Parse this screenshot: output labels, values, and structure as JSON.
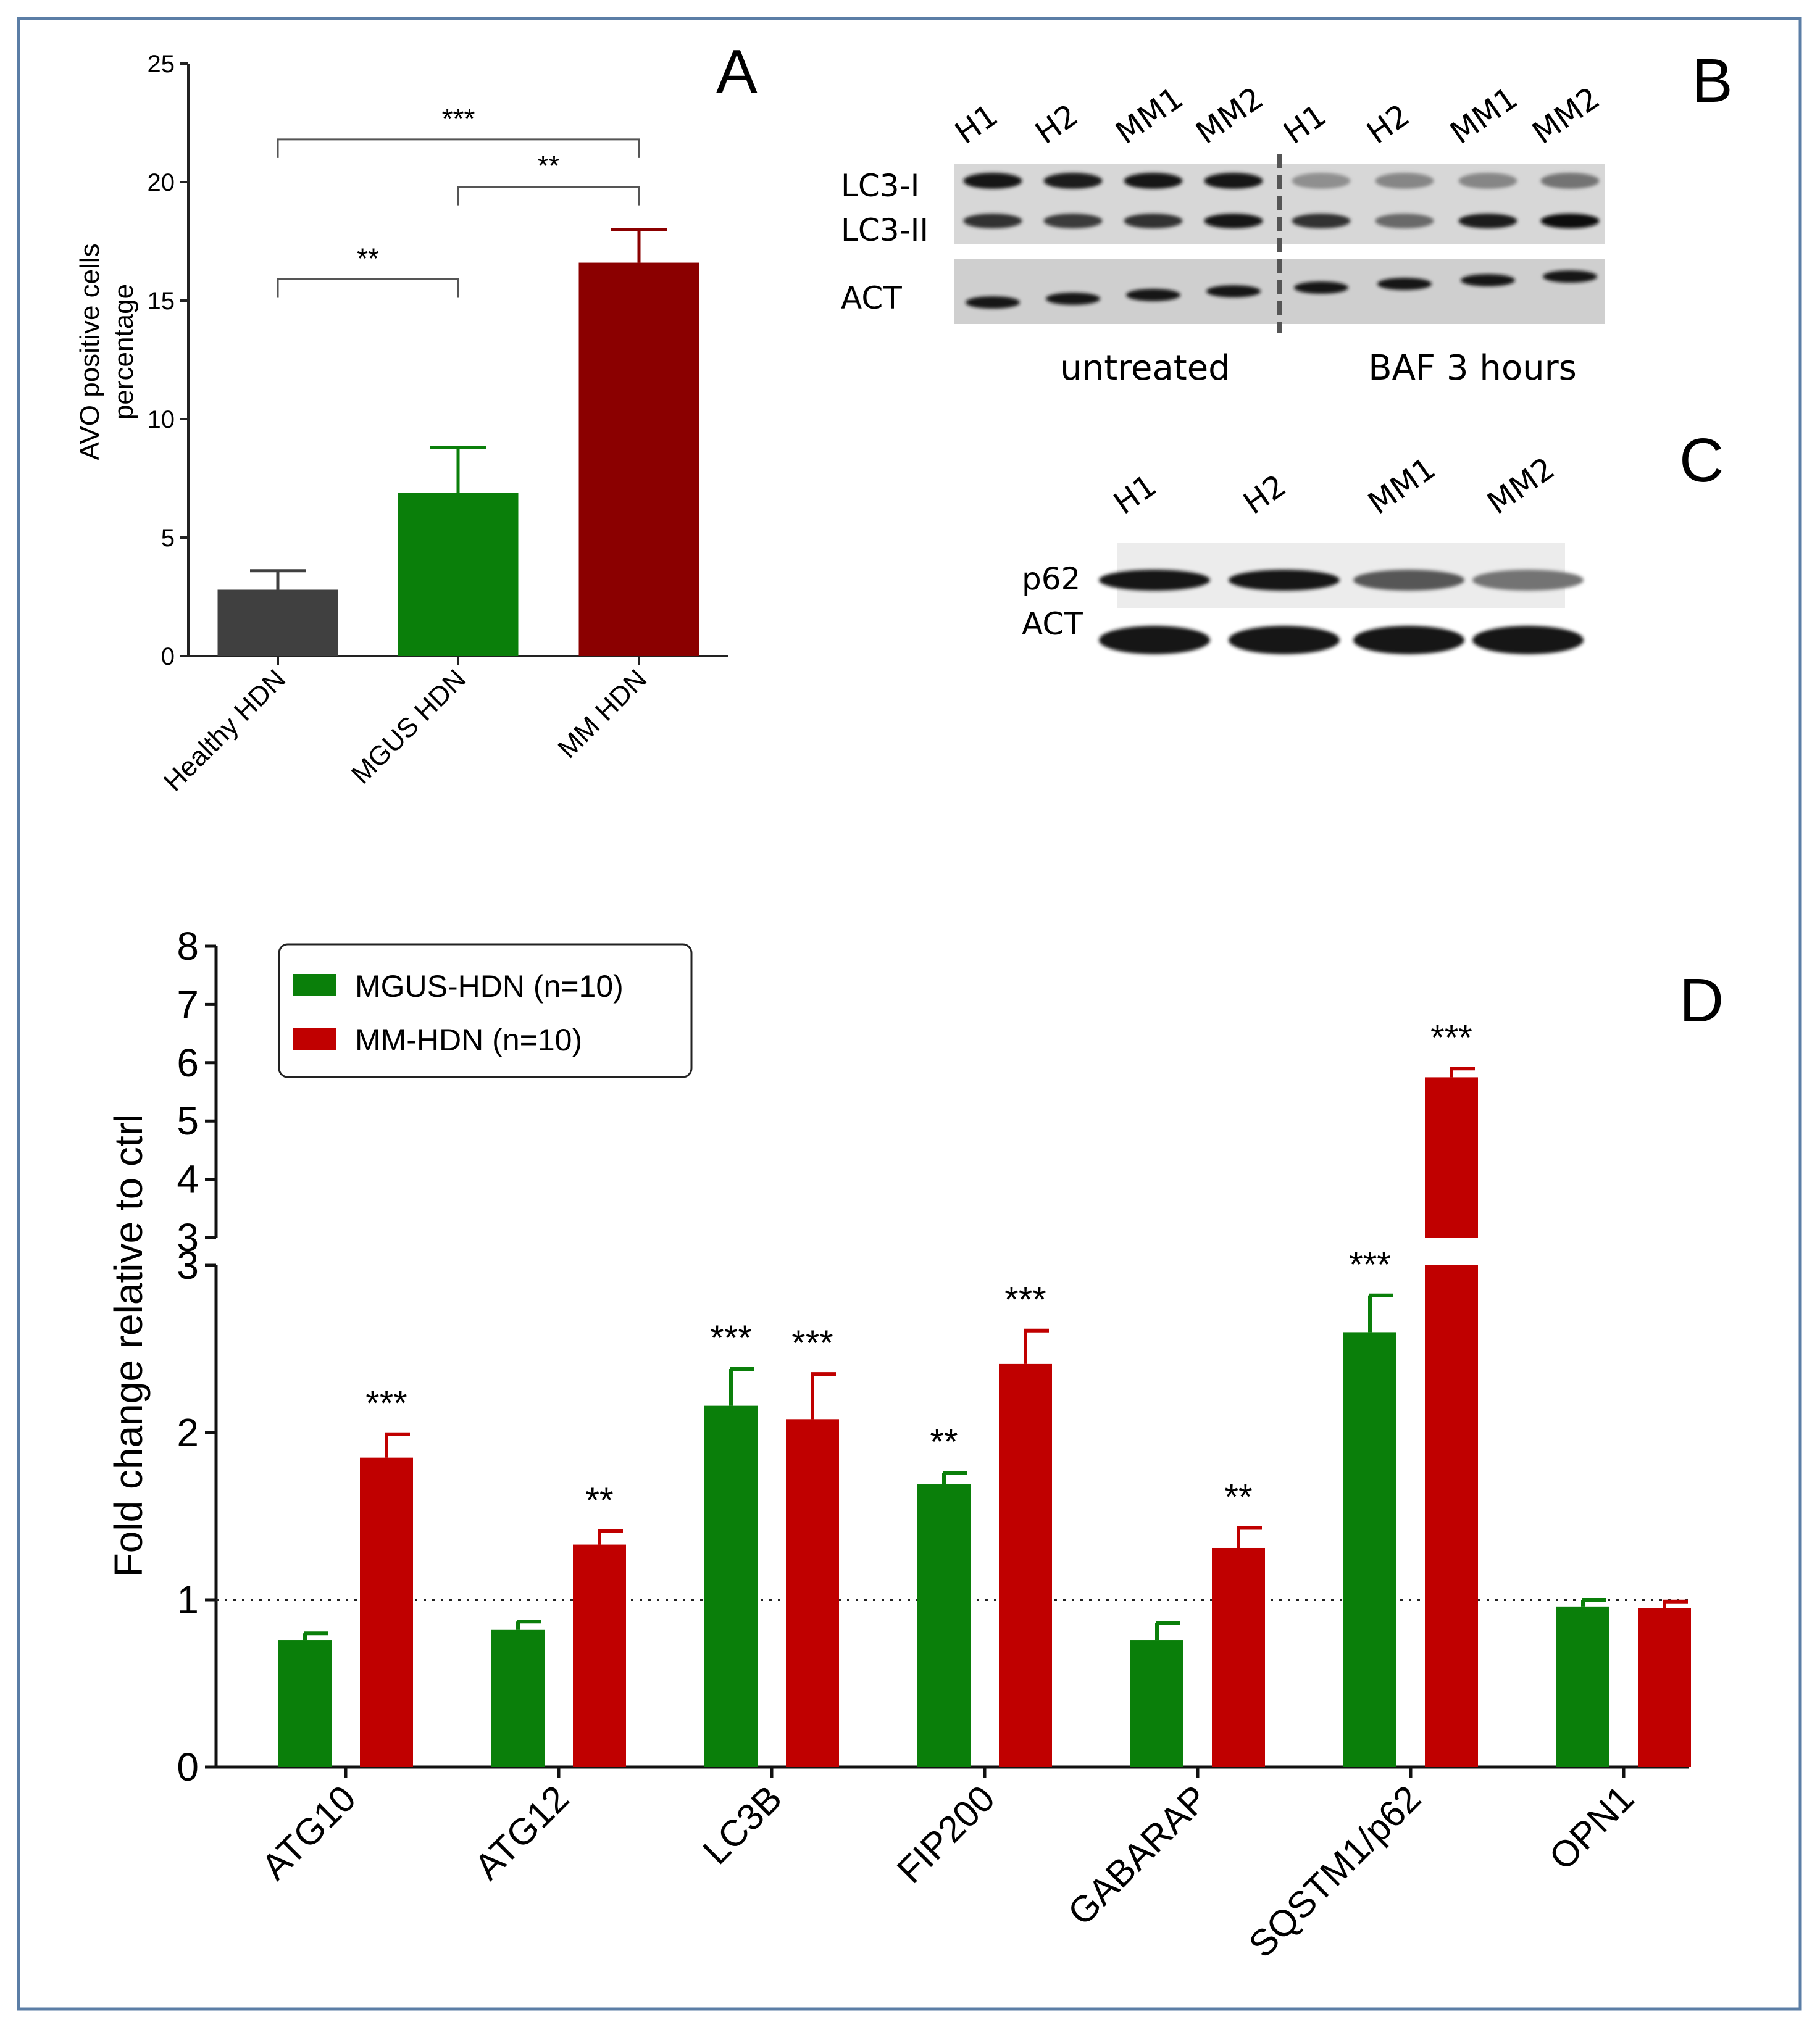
{
  "panel_labels": {
    "a": "A",
    "b": "B",
    "c": "C",
    "d": "D"
  },
  "colors": {
    "frame": "#5b7ea6",
    "healthy": "#404040",
    "mgus": "#0a7f0a",
    "mm_dark": "#8b0000",
    "mm": "#c00000"
  },
  "chart_data": [
    {
      "type": "bar",
      "panel": "A",
      "ylabel_lines": [
        "AVO positive cells",
        "percentage"
      ],
      "ylim": [
        0,
        25
      ],
      "yticks": [
        0,
        5,
        10,
        15,
        20,
        25
      ],
      "categories": [
        "Healthy HDN",
        "MGUS HDN",
        "MM HDN"
      ],
      "values": [
        2.8,
        6.9,
        16.6
      ],
      "errors": [
        0.8,
        1.9,
        1.4
      ],
      "significance": [
        {
          "from": 0,
          "to": 2,
          "label": "***",
          "y": 21.8
        },
        {
          "from": 1,
          "to": 2,
          "label": "**",
          "y": 19.8
        },
        {
          "from": 0,
          "to": 1,
          "label": "**",
          "y": 15.9
        }
      ],
      "grid": false
    },
    {
      "type": "bar",
      "panel": "D",
      "ylabel": "Fold change relative to ctrl",
      "categories": [
        "ATG10",
        "ATG12",
        "LC3B",
        "FIP200",
        "GABARAP",
        "SQSTM1/p62",
        "OPN1"
      ],
      "series": [
        {
          "name": "MGUS-HDN (n=10)",
          "values": [
            0.76,
            0.82,
            2.16,
            1.69,
            0.76,
            2.6,
            0.96
          ],
          "errors": [
            0.04,
            0.05,
            0.22,
            0.07,
            0.1,
            0.22,
            0.04
          ],
          "significance": [
            "",
            "",
            "***",
            "**",
            "",
            "***",
            ""
          ]
        },
        {
          "name": "MM-HDN (n=10)",
          "values": [
            1.85,
            1.33,
            2.08,
            2.41,
            1.31,
            5.75,
            0.95
          ],
          "errors": [
            0.14,
            0.08,
            0.27,
            0.2,
            0.12,
            0.15,
            0.04
          ],
          "significance": [
            "***",
            "**",
            "***",
            "***",
            "**",
            "***",
            ""
          ]
        }
      ],
      "broken_axis": true,
      "ylim_lower": [
        0,
        3
      ],
      "ylim_upper": [
        3,
        8
      ],
      "yticks_lower": [
        0,
        1,
        2,
        3
      ],
      "yticks_upper": [
        3,
        4,
        5,
        6,
        7,
        8
      ],
      "reference_line": 1,
      "legend_position": "top-left",
      "grid": false
    }
  ],
  "blot_b": {
    "lanes": [
      "H1",
      "H2",
      "MM1",
      "MM2",
      "H1",
      "H2",
      "MM1",
      "MM2"
    ],
    "rows": [
      "LC3-I",
      "LC3-II",
      "ACT"
    ],
    "conditions": [
      "untreated",
      "BAF 3 hours"
    ],
    "lc3_i_intensity": [
      0.95,
      0.9,
      0.95,
      0.95,
      0.3,
      0.35,
      0.35,
      0.45
    ],
    "lc3_ii_intensity": [
      0.8,
      0.75,
      0.8,
      0.95,
      0.8,
      0.5,
      0.9,
      1.0
    ],
    "act_intensity": [
      0.95,
      0.95,
      0.95,
      0.95,
      0.95,
      0.95,
      0.95,
      0.95
    ]
  },
  "blot_c": {
    "lanes": [
      "H1",
      "H2",
      "MM1",
      "MM2"
    ],
    "rows": [
      "p62",
      "ACT"
    ],
    "p62_intensity": [
      0.95,
      0.95,
      0.6,
      0.45
    ],
    "act_intensity": [
      0.95,
      0.95,
      0.95,
      0.95
    ]
  }
}
